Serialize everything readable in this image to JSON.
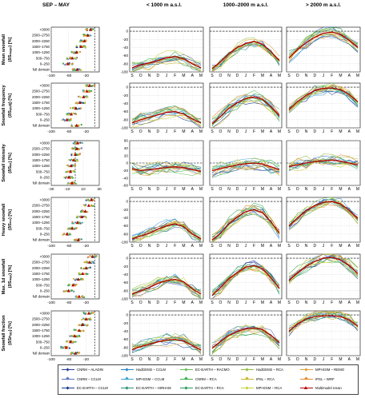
{
  "columns": [
    {
      "label": "SEP – MAY"
    },
    {
      "label": "< 1000 m a.s.l."
    },
    {
      "label": "1000–2000 m a.s.l."
    },
    {
      "label": "> 2000 m a.s.l."
    }
  ],
  "rows": [
    {
      "title": "Mean snowfall",
      "sub": "(δSₘₑₐₙ) [%]",
      "key": "mean",
      "xlim": [
        -100,
        10
      ],
      "xticks": [
        -100,
        -60,
        -20
      ],
      "ylim": [
        -100,
        10
      ],
      "yticks": [
        0,
        -20,
        -40,
        -60,
        -80,
        -100
      ]
    },
    {
      "title": "Snowfall frequency",
      "sub": "(δSₑᵣₑq) [%]",
      "key": "freq",
      "xlim": [
        -100,
        10
      ],
      "xticks": [
        -100,
        -60,
        -20
      ],
      "ylim": [
        -100,
        10
      ],
      "yticks": [
        0,
        -20,
        -40,
        -60,
        -80,
        -100
      ]
    },
    {
      "title": "Snowfall intensity",
      "sub": "(δSᵢₙₜ) [%]",
      "key": "int",
      "xlim": [
        -30,
        30
      ],
      "xticks": [
        -30,
        -10,
        10,
        30
      ],
      "ylim": [
        -60,
        60
      ],
      "yticks": [
        60,
        40,
        20,
        0,
        -20,
        -40,
        -60
      ]
    },
    {
      "title": "Heavy snowfall",
      "sub": "(δS₉₉) [%]",
      "key": "heavy",
      "xlim": [
        -100,
        10
      ],
      "xticks": [
        -100,
        -60,
        -20
      ],
      "ylim": [
        -100,
        10
      ],
      "yticks": [
        0,
        -20,
        -40,
        -60,
        -80,
        -100
      ]
    },
    {
      "title": "Max. 1d snowfall",
      "sub": "(δSₘₐₓ) [%]",
      "key": "max",
      "xlim": [
        -100,
        10
      ],
      "xticks": [
        -100,
        -60,
        -20
      ],
      "ylim": [
        -100,
        10
      ],
      "yticks": [
        0,
        -20,
        -40,
        -60,
        -80,
        -100
      ]
    },
    {
      "title": "Snowfall fraction",
      "sub": "(δSꜰᵣₐₒ) [%]",
      "key": "frac",
      "xlim": [
        -100,
        10
      ],
      "xticks": [
        -100,
        -60,
        -20
      ],
      "ylim": [
        -100,
        10
      ],
      "yticks": [
        0,
        -20,
        -40,
        -60,
        -80,
        -100
      ]
    }
  ],
  "elevation_bands": [
    ">3000",
    "2500–2750",
    "2000–2250",
    "1500–1750",
    "1000–1250",
    "500–750",
    "0–250",
    "full domain"
  ],
  "months": [
    "S",
    "O",
    "N",
    "D",
    "J",
    "F",
    "M",
    "A",
    "M"
  ],
  "legend": [
    {
      "label": "CNRM – ALADIN",
      "color": "#2b3f9e"
    },
    {
      "label": "CNRM – CCLM",
      "color": "#5b74c4"
    },
    {
      "label": "EC-EARTH – CCLM",
      "color": "#1a3d8f"
    },
    {
      "label": "HadGEM2 – CCLM",
      "color": "#2f86c8"
    },
    {
      "label": "MPI-ESM – CCLM",
      "color": "#3ea0d6"
    },
    {
      "label": "EC-EARTH – HIRHAM",
      "color": "#2a8f76"
    },
    {
      "label": "EC-EARTH – RACMO",
      "color": "#6bbf59"
    },
    {
      "label": "CNRM – RCA",
      "color": "#3fae4a"
    },
    {
      "label": "EC-EARTH – RCA",
      "color": "#239b56"
    },
    {
      "label": "HadGEM2 – RCA",
      "color": "#8fbf3f"
    },
    {
      "label": "IPSL – RCA",
      "color": "#c8b52e"
    },
    {
      "label": "MPI-ESM – RCA",
      "color": "#c9d23a"
    },
    {
      "label": "MPI-ESM – REMO",
      "color": "#e0a13a"
    },
    {
      "label": "IPSL – WRF",
      "color": "#e8892d"
    },
    {
      "label": "Multimodel mean",
      "color": "#b40000"
    }
  ],
  "chart_data": [
    {
      "type": "line",
      "title": "Mean snowfall, SEP–MAY, by elevation band",
      "y_categories": [
        ">3000",
        "2500–2750",
        "2000–2250",
        "1500–1750",
        "1000–1250",
        "500–750",
        "0–250",
        "full domain"
      ],
      "series": [
        {
          "name": "Multimodel mean",
          "values": [
            -10,
            -16,
            -24,
            -32,
            -42,
            -52,
            -62,
            -40
          ]
        }
      ]
    },
    {
      "type": "line",
      "title": "Mean snowfall, < 1000 m a.s.l.",
      "categories": [
        "S",
        "O",
        "N",
        "D",
        "J",
        "F",
        "M",
        "A",
        "M"
      ],
      "series": [
        {
          "name": "Multimodel mean",
          "values": [
            -90,
            -82,
            -78,
            -72,
            -65,
            -62,
            -68,
            -80,
            -90
          ]
        }
      ]
    },
    {
      "type": "line",
      "title": "Mean snowfall, 1000–2000 m a.s.l.",
      "categories": [
        "S",
        "O",
        "N",
        "D",
        "J",
        "F",
        "M",
        "A",
        "M"
      ],
      "series": [
        {
          "name": "Multimodel mean",
          "values": [
            -92,
            -75,
            -55,
            -40,
            -30,
            -25,
            -32,
            -50,
            -72
          ]
        }
      ]
    },
    {
      "type": "line",
      "title": "Mean snowfall, > 2000 m a.s.l.",
      "categories": [
        "S",
        "O",
        "N",
        "D",
        "J",
        "F",
        "M",
        "A",
        "M"
      ],
      "series": [
        {
          "name": "Multimodel mean",
          "values": [
            -65,
            -45,
            -28,
            -15,
            -5,
            -2,
            -8,
            -22,
            -40
          ]
        }
      ]
    },
    {
      "type": "line",
      "title": "Snowfall frequency, SEP–MAY",
      "y_categories": [
        ">3000",
        "2500–2750",
        "2000–2250",
        "1500–1750",
        "1000–1250",
        "500–750",
        "0–250",
        "full domain"
      ],
      "series": [
        {
          "name": "Multimodel mean",
          "values": [
            -12,
            -18,
            -26,
            -34,
            -44,
            -54,
            -64,
            -42
          ]
        }
      ]
    },
    {
      "type": "line",
      "title": "Snowfall frequency, < 1000 m a.s.l.",
      "categories": [
        "S",
        "O",
        "N",
        "D",
        "J",
        "F",
        "M",
        "A",
        "M"
      ],
      "series": [
        {
          "name": "Multimodel mean",
          "values": [
            -88,
            -80,
            -74,
            -68,
            -62,
            -60,
            -66,
            -78,
            -88
          ]
        }
      ]
    },
    {
      "type": "line",
      "title": "Snowfall frequency, 1000–2000 m a.s.l.",
      "categories": [
        "S",
        "O",
        "N",
        "D",
        "J",
        "F",
        "M",
        "A",
        "M"
      ],
      "series": [
        {
          "name": "Multimodel mean",
          "values": [
            -90,
            -72,
            -52,
            -38,
            -28,
            -24,
            -30,
            -48,
            -70
          ]
        }
      ]
    },
    {
      "type": "line",
      "title": "Snowfall frequency, > 2000 m a.s.l.",
      "categories": [
        "S",
        "O",
        "N",
        "D",
        "J",
        "F",
        "M",
        "A",
        "M"
      ],
      "series": [
        {
          "name": "Multimodel mean",
          "values": [
            -55,
            -35,
            -20,
            -8,
            -3,
            -2,
            -6,
            -18,
            -36
          ]
        }
      ]
    },
    {
      "type": "line",
      "title": "Snowfall intensity, SEP–MAY",
      "y_categories": [
        ">3000",
        "2500–2750",
        "2000–2250",
        "1500–1750",
        "1000–1250",
        "500–750",
        "0–250",
        "full domain"
      ],
      "series": [
        {
          "name": "Multimodel mean",
          "values": [
            3,
            2,
            0,
            -2,
            -5,
            -6,
            -8,
            -4
          ]
        }
      ]
    },
    {
      "type": "line",
      "title": "Snowfall intensity, < 1000 m a.s.l.",
      "categories": [
        "S",
        "O",
        "N",
        "D",
        "J",
        "F",
        "M",
        "A",
        "M"
      ],
      "series": [
        {
          "name": "Multimodel mean",
          "values": [
            -15,
            -20,
            -18,
            -15,
            -12,
            -10,
            -12,
            -18,
            -22
          ]
        }
      ]
    },
    {
      "type": "line",
      "title": "Snowfall intensity, 1000–2000 m a.s.l.",
      "categories": [
        "S",
        "O",
        "N",
        "D",
        "J",
        "F",
        "M",
        "A",
        "M"
      ],
      "series": [
        {
          "name": "Multimodel mean",
          "values": [
            -20,
            -15,
            -10,
            -5,
            -2,
            0,
            -3,
            -10,
            -18
          ]
        }
      ]
    },
    {
      "type": "line",
      "title": "Snowfall intensity, > 2000 m a.s.l.",
      "categories": [
        "S",
        "O",
        "N",
        "D",
        "J",
        "F",
        "M",
        "A",
        "M"
      ],
      "series": [
        {
          "name": "Multimodel mean",
          "values": [
            -10,
            -5,
            0,
            4,
            6,
            8,
            5,
            0,
            -5
          ]
        }
      ]
    },
    {
      "type": "line",
      "title": "Heavy snowfall, SEP–MAY",
      "y_categories": [
        ">3000",
        "2500–2750",
        "2000–2250",
        "1500–1750",
        "1000–1250",
        "500–750",
        "0–250",
        "full domain"
      ],
      "series": [
        {
          "name": "Multimodel mean",
          "values": [
            -8,
            -14,
            -22,
            -30,
            -40,
            -52,
            -64,
            -38
          ]
        }
      ]
    },
    {
      "type": "line",
      "title": "Heavy snowfall, < 1000 m a.s.l.",
      "categories": [
        "S",
        "O",
        "N",
        "D",
        "J",
        "F",
        "M",
        "A",
        "M"
      ],
      "series": [
        {
          "name": "Multimodel mean",
          "values": [
            -92,
            -85,
            -78,
            -68,
            -60,
            -55,
            -62,
            -80,
            -92
          ]
        }
      ]
    },
    {
      "type": "line",
      "title": "Heavy snowfall, 1000–2000 m a.s.l.",
      "categories": [
        "S",
        "O",
        "N",
        "D",
        "J",
        "F",
        "M",
        "A",
        "M"
      ],
      "series": [
        {
          "name": "Multimodel mean",
          "values": [
            -95,
            -78,
            -55,
            -38,
            -25,
            -20,
            -28,
            -50,
            -78
          ]
        }
      ]
    },
    {
      "type": "line",
      "title": "Heavy snowfall, > 2000 m a.s.l.",
      "categories": [
        "S",
        "O",
        "N",
        "D",
        "J",
        "F",
        "M",
        "A",
        "M"
      ],
      "series": [
        {
          "name": "Multimodel mean",
          "values": [
            -60,
            -40,
            -22,
            -10,
            -2,
            0,
            -6,
            -22,
            -42
          ]
        }
      ]
    },
    {
      "type": "line",
      "title": "Max. 1d snowfall, SEP–MAY",
      "y_categories": [
        ">3000",
        "2500–2750",
        "2000–2250",
        "1500–1750",
        "1000–1250",
        "500–750",
        "0–250",
        "full domain"
      ],
      "series": [
        {
          "name": "Multimodel mean",
          "values": [
            -6,
            -12,
            -20,
            -28,
            -38,
            -50,
            -60,
            -36
          ]
        }
      ]
    },
    {
      "type": "line",
      "title": "Max. 1d snowfall, < 1000 m a.s.l.",
      "categories": [
        "S",
        "O",
        "N",
        "D",
        "J",
        "F",
        "M",
        "A",
        "M"
      ],
      "series": [
        {
          "name": "Multimodel mean",
          "values": [
            -88,
            -80,
            -72,
            -62,
            -55,
            -52,
            -58,
            -75,
            -88
          ]
        }
      ]
    },
    {
      "type": "line",
      "title": "Max. 1d snowfall, 1000–2000 m a.s.l.",
      "categories": [
        "S",
        "O",
        "N",
        "D",
        "J",
        "F",
        "M",
        "A",
        "M"
      ],
      "series": [
        {
          "name": "Multimodel mean",
          "values": [
            -92,
            -72,
            -50,
            -35,
            -22,
            -18,
            -26,
            -48,
            -74
          ]
        }
      ]
    },
    {
      "type": "line",
      "title": "Max. 1d snowfall, > 2000 m a.s.l.",
      "categories": [
        "S",
        "O",
        "N",
        "D",
        "J",
        "F",
        "M",
        "A",
        "M"
      ],
      "series": [
        {
          "name": "Multimodel mean",
          "values": [
            -55,
            -36,
            -20,
            -8,
            0,
            2,
            -4,
            -18,
            -38
          ]
        }
      ]
    },
    {
      "type": "line",
      "title": "Snowfall fraction, SEP–MAY",
      "y_categories": [
        ">3000",
        "2500–2750",
        "2000–2250",
        "1500–1750",
        "1000–1250",
        "500–750",
        "0–250",
        "full domain"
      ],
      "series": [
        {
          "name": "Multimodel mean",
          "values": [
            -14,
            -20,
            -28,
            -36,
            -46,
            -56,
            -66,
            -44
          ]
        }
      ]
    },
    {
      "type": "line",
      "title": "Snowfall fraction, < 1000 m a.s.l.",
      "categories": [
        "S",
        "O",
        "N",
        "D",
        "J",
        "F",
        "M",
        "A",
        "M"
      ],
      "series": [
        {
          "name": "Multimodel mean",
          "values": [
            -85,
            -78,
            -72,
            -66,
            -62,
            -60,
            -64,
            -75,
            -86
          ]
        }
      ]
    },
    {
      "type": "line",
      "title": "Snowfall fraction, 1000–2000 m a.s.l.",
      "categories": [
        "S",
        "O",
        "N",
        "D",
        "J",
        "F",
        "M",
        "A",
        "M"
      ],
      "series": [
        {
          "name": "Multimodel mean",
          "values": [
            -82,
            -65,
            -50,
            -40,
            -34,
            -32,
            -36,
            -50,
            -68
          ]
        }
      ]
    },
    {
      "type": "line",
      "title": "Snowfall fraction, > 2000 m a.s.l.",
      "categories": [
        "S",
        "O",
        "N",
        "D",
        "J",
        "F",
        "M",
        "A",
        "M"
      ],
      "series": [
        {
          "name": "Multimodel mean",
          "values": [
            -40,
            -22,
            -10,
            -4,
            -2,
            -2,
            -4,
            -12,
            -28
          ]
        }
      ]
    }
  ]
}
